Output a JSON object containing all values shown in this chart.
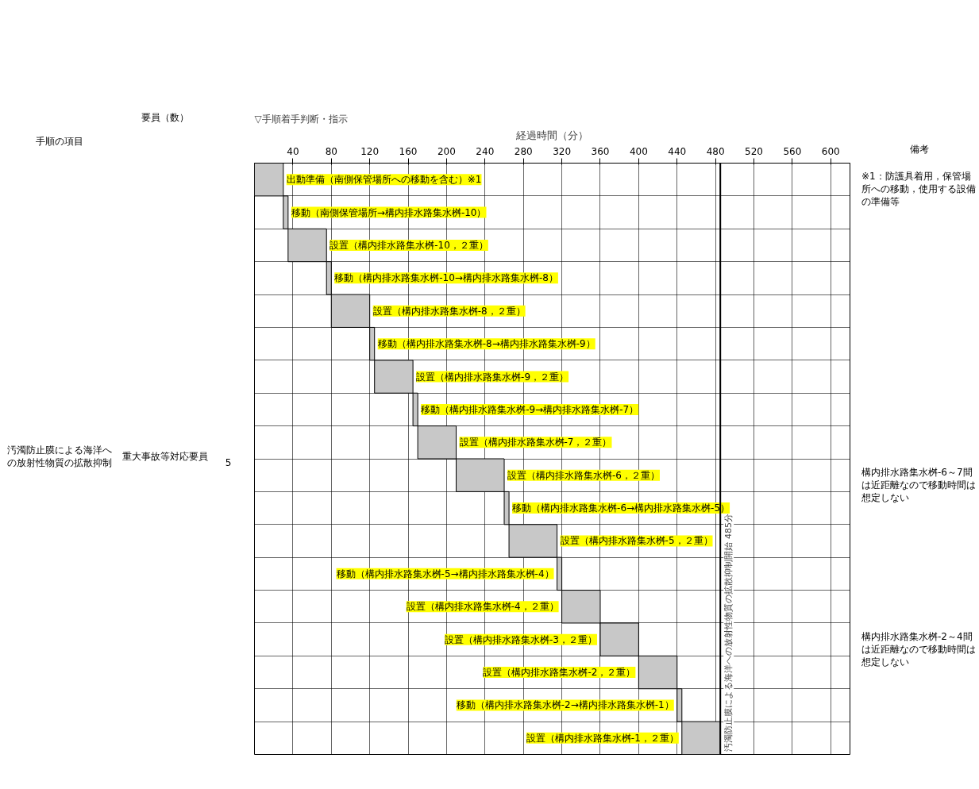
{
  "chart_data": {
    "type": "bar",
    "orientation": "horizontal",
    "xlabel": "経過時間（分）",
    "categories": [
      null,
      null,
      null,
      null,
      null,
      null,
      null,
      null,
      null,
      null,
      null,
      null,
      null,
      null,
      null,
      null,
      null,
      null
    ],
    "base": [
      0,
      30,
      35,
      75,
      80,
      120,
      125,
      165,
      170,
      210,
      260,
      265,
      315,
      320,
      360,
      400,
      440,
      445
    ],
    "values": [
      30,
      5,
      40,
      5,
      40,
      5,
      40,
      5,
      40,
      50,
      5,
      50,
      5,
      40,
      40,
      40,
      5,
      40
    ],
    "color": "#c8c8c8",
    "xlim": [
      0,
      620
    ],
    "xticks": [
      40,
      80,
      120,
      160,
      200,
      240,
      280,
      320,
      360,
      400,
      440,
      480,
      520,
      560,
      600
    ],
    "grid": true,
    "tick_labels": "x",
    "ref_lines": [
      {
        "axis": "x",
        "value": 485,
        "label": "汚濁防止膜による海洋への放射性物質の拡散抑制開始 485分"
      }
    ],
    "annotations": [
      "▽手順着手判断・指示",
      "手順の項目",
      "要員（数）",
      "汚濁防止膜による海洋への放射性物質の拡散抑制",
      "重大事故等対応要員",
      "5",
      "備考",
      "※1：防護具着用，保管場所への移動，使用する設備の準備等",
      "構内排水路集水桝-6～7間は近距離なので移動時間は想定しない",
      "構内排水路集水桝-2～4間は近距離なので移動時間は想定しない",
      "出動準備（南側保管場所への移動を含む）※1",
      "移動（南側保管場所→構内排水路集水桝-10）",
      "設置（構内排水路集水桝-10，２重）",
      "移動（構内排水路集水桝-10→構内排水路集水桝-8）",
      "設置（構内排水路集水桝-8，２重）",
      "移動（構内排水路集水桝-8→構内排水路集水桝-9）",
      "設置（構内排水路集水桝-9，２重）",
      "移動（構内排水路集水桝-9→構内排水路集水桝-7）",
      "設置（構内排水路集水桝-7，２重）",
      "設置（構内排水路集水桝-6，２重）",
      "移動（構内排水路集水桝-6→構内排水路集水桝-5）",
      "設置（構内排水路集水桝-5，２重）",
      "移動（構内排水路集水桝-5→構内排水路集水桝-4）",
      "設置（構内排水路集水桝-4，２重）",
      "設置（構内排水路集水桝-3，２重）",
      "設置（構内排水路集水桝-2，２重）",
      "移動（構内排水路集水桝-2→構内排水路集水桝-1）",
      "設置（構内排水路集水桝-1，２重）"
    ]
  }
}
